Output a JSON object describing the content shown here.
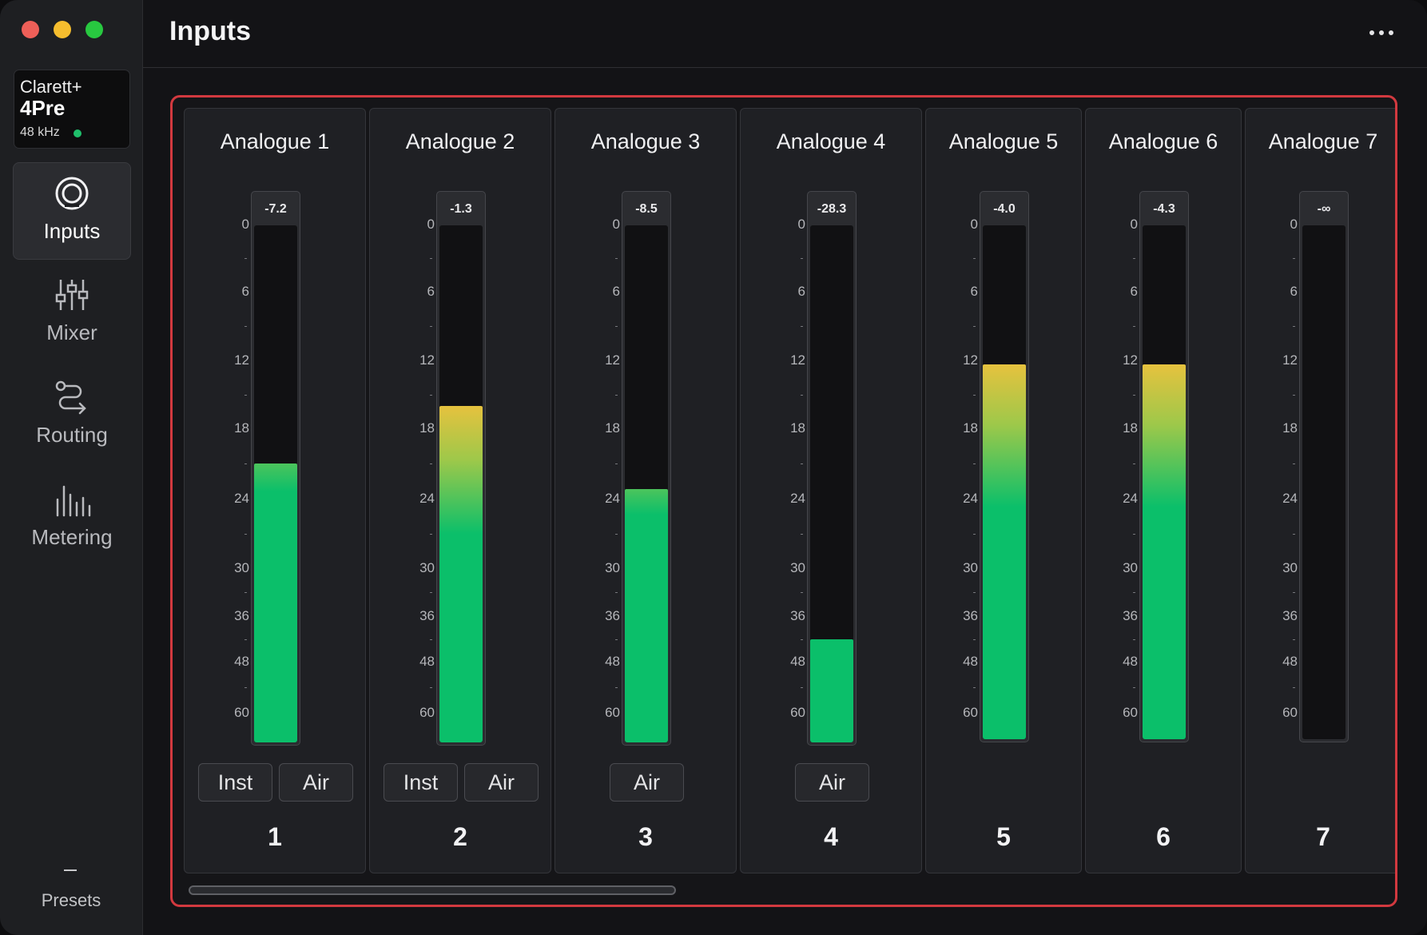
{
  "window": {
    "controls": [
      "close",
      "minimize",
      "zoom"
    ]
  },
  "device": {
    "name": "Clarett+",
    "model": "4Pre",
    "sample_rate": "48 kHz",
    "status_color": "#1fbf6b"
  },
  "sidebar": {
    "items": [
      {
        "label": "Inputs",
        "icon": "inputs-icon",
        "active": true
      },
      {
        "label": "Mixer",
        "icon": "mixer-sliders-icon",
        "active": false
      },
      {
        "label": "Routing",
        "icon": "routing-icon",
        "active": false
      },
      {
        "label": "Metering",
        "icon": "metering-bars-icon",
        "active": false
      }
    ],
    "presets_label": "Presets"
  },
  "header": {
    "title": "Inputs",
    "more_icon": "more-horizontal-icon"
  },
  "scale_labels": [
    "0",
    "6",
    "12",
    "18",
    "24",
    "30",
    "36",
    "48",
    "60"
  ],
  "channels": [
    {
      "name": "Analogue 1",
      "number": "1",
      "peak": "-7.2",
      "level": 0.54,
      "buttons": [
        "Inst",
        "Air"
      ]
    },
    {
      "name": "Analogue 2",
      "number": "2",
      "peak": "-1.3",
      "level": 0.65,
      "buttons": [
        "Inst",
        "Air"
      ]
    },
    {
      "name": "Analogue 3",
      "number": "3",
      "peak": "-8.5",
      "level": 0.49,
      "buttons": [
        "Air"
      ]
    },
    {
      "name": "Analogue 4",
      "number": "4",
      "peak": "-28.3",
      "level": 0.2,
      "buttons": [
        "Air"
      ]
    },
    {
      "name": "Analogue 5",
      "number": "5",
      "peak": "-4.0",
      "level": 0.73,
      "buttons": []
    },
    {
      "name": "Analogue 6",
      "number": "6",
      "peak": "-4.3",
      "level": 0.73,
      "buttons": []
    },
    {
      "name": "Analogue 7",
      "number": "7",
      "peak": "-∞",
      "level": 0,
      "buttons": []
    }
  ],
  "colors": {
    "accent_highlight": "#d2393f",
    "meter_green": "#0bbf6a",
    "meter_yellow": "#e6c23e"
  }
}
